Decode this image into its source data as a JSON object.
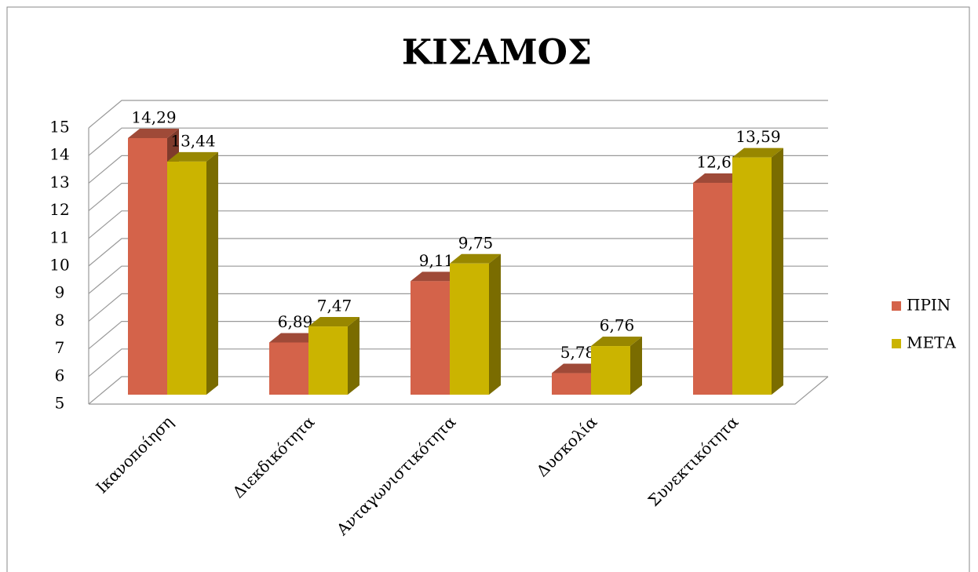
{
  "chart_data": {
    "type": "bar3d",
    "title": "ΚΙΣΑΜΟΣ",
    "categories": [
      "Ικανοποίηση",
      "Διεκδικότητα",
      "Ανταγωνιστικότητα",
      "Δυσκολία",
      "Συνεκτικότητα"
    ],
    "series": [
      {
        "name": "ΠΡΙΝ",
        "color": "#d4634a",
        "values": [
          14.29,
          6.89,
          9.11,
          5.78,
          12.67
        ],
        "value_labels": [
          "14,29",
          "6,89",
          "9,11",
          "5,78",
          "12,67"
        ]
      },
      {
        "name": "ΜΕΤΑ",
        "color": "#cbb400",
        "values": [
          13.44,
          7.47,
          9.75,
          6.76,
          13.59
        ],
        "value_labels": [
          "13,44",
          "7,47",
          "9,75",
          "6,76",
          "13,59"
        ]
      }
    ],
    "ylim": [
      5,
      15
    ],
    "yticks": [
      5,
      6,
      7,
      8,
      9,
      10,
      11,
      12,
      13,
      14,
      15
    ],
    "grid": true,
    "legend": "right"
  }
}
